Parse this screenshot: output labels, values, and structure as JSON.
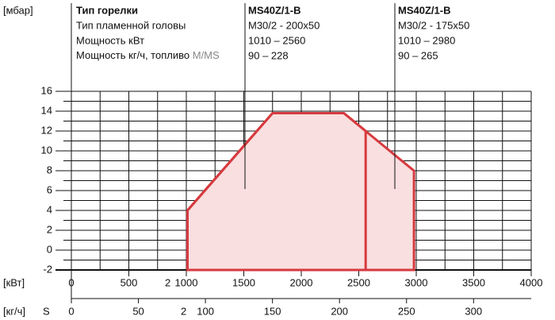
{
  "y_unit": "[мбар]",
  "header": {
    "rows": [
      "Тип горелки",
      "Тип пламенной головы",
      "Мощность кВт",
      "Мощность кг/ч, топливо"
    ],
    "fuel_type": "M/MS",
    "models": [
      {
        "name": "MS40Z/1-B",
        "head": "M30/2 - 200x50",
        "power_kw": "1010 – 2560",
        "power_kgh": "90 – 228"
      },
      {
        "name": "MS40Z/1-B",
        "head": "M30/2 - 175x50",
        "power_kw": "1010 – 2980",
        "power_kgh": "90 – 265"
      }
    ]
  },
  "chart_data": {
    "type": "area",
    "x_label": "[кВт]",
    "x2_label": "[кг/ч]",
    "x2_fuel": "S",
    "note_marker": "2",
    "xlim": [
      0,
      4000
    ],
    "xticks": [
      0,
      500,
      1000,
      1500,
      2000,
      2500,
      3000,
      3500,
      4000
    ],
    "x2lim": [
      0,
      343
    ],
    "x2ticks": [
      0,
      50,
      100,
      150,
      200,
      250,
      300
    ],
    "ylim": [
      -2,
      16
    ],
    "yticks": [
      -2,
      0,
      2,
      4,
      6,
      8,
      10,
      12,
      14,
      16
    ],
    "grid": true,
    "minor_grid": true,
    "fill": "#f9dfdf",
    "series": [
      {
        "color": "#d63a3f",
        "x": [
          1010,
          1010,
          1750,
          2370,
          2980,
          2980
        ],
        "values": [
          -2,
          4,
          13.8,
          13.8,
          8,
          -2
        ]
      },
      {
        "color": "#d63a3f",
        "x": [
          1010,
          1010,
          1750,
          2370,
          2560,
          2560
        ],
        "values": [
          -2,
          4,
          13.8,
          13.8,
          12,
          -2
        ]
      }
    ]
  }
}
